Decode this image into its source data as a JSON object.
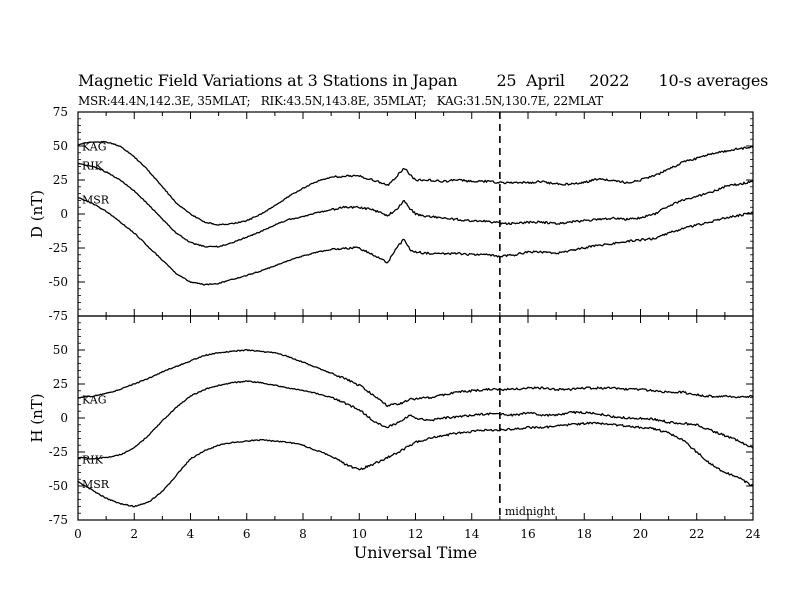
{
  "chart_data": [
    {
      "type": "line",
      "panel": "D",
      "title": "Magnetic Field Variations at 3 Stations in Japan        25  April     2022      10-s averages",
      "subtitle": "MSR:44.4N,142.3E, 35MLAT;   RIK:43.5N,143.8E, 35MLAT;   KAG:31.5N,130.7E, 22MLAT",
      "ylabel": "D (nT)",
      "xlabel": "",
      "xlim": [
        0,
        24
      ],
      "ylim": [
        -75,
        75
      ],
      "yticks": [
        -75,
        -50,
        -25,
        0,
        25,
        50,
        75
      ],
      "x": [
        0,
        0.5,
        1,
        1.5,
        2,
        2.5,
        3,
        3.5,
        4,
        4.5,
        5,
        5.5,
        6,
        6.5,
        7,
        7.5,
        8,
        8.5,
        9,
        9.5,
        10,
        10.5,
        11,
        11.3,
        11.6,
        11.8,
        12,
        12.5,
        13,
        13.5,
        14,
        14.5,
        15,
        15.5,
        16,
        16.5,
        17,
        17.5,
        18,
        18.5,
        19,
        19.5,
        20,
        20.5,
        21,
        21.5,
        22,
        22.5,
        23,
        23.5,
        24
      ],
      "series": [
        {
          "name": "KAG",
          "values": [
            51,
            53,
            53,
            50,
            42,
            32,
            20,
            8,
            0,
            -6,
            -8,
            -7,
            -5,
            0,
            6,
            13,
            19,
            24,
            27,
            28,
            28,
            25,
            21,
            27,
            34,
            29,
            25,
            25,
            24,
            25,
            24,
            24,
            23,
            23,
            23,
            24,
            22,
            22,
            23,
            26,
            25,
            23,
            25,
            28,
            33,
            38,
            41,
            44,
            46,
            48,
            49
          ]
        },
        {
          "name": "RIK",
          "values": [
            37,
            35,
            31,
            25,
            17,
            7,
            -4,
            -14,
            -21,
            -24,
            -24,
            -21,
            -17,
            -13,
            -8,
            -4,
            -2,
            1,
            3,
            5,
            5,
            3,
            -1,
            3,
            10,
            4,
            0,
            -2,
            -3,
            -4,
            -5,
            -5,
            -7,
            -7,
            -6,
            -6,
            -7,
            -6,
            -5,
            -4,
            -3,
            -4,
            -3,
            0,
            6,
            10,
            13,
            16,
            20,
            22,
            24
          ]
        },
        {
          "name": "MSR",
          "values": [
            12,
            8,
            2,
            -6,
            -14,
            -24,
            -34,
            -44,
            -50,
            -52,
            -51,
            -48,
            -45,
            -42,
            -38,
            -34,
            -31,
            -28,
            -26,
            -25,
            -25,
            -30,
            -36,
            -26,
            -18,
            -26,
            -28,
            -29,
            -29,
            -29,
            -30,
            -30,
            -31,
            -30,
            -28,
            -28,
            -29,
            -27,
            -25,
            -23,
            -22,
            -20,
            -19,
            -18,
            -14,
            -11,
            -8,
            -6,
            -3,
            -1,
            1
          ]
        }
      ]
    },
    {
      "type": "line",
      "panel": "H",
      "title": "",
      "ylabel": "H (nT)",
      "xlabel": "Universal Time",
      "xlim": [
        0,
        24
      ],
      "ylim": [
        -75,
        75
      ],
      "xticks": [
        0,
        2,
        4,
        6,
        8,
        10,
        12,
        14,
        16,
        18,
        20,
        22,
        24
      ],
      "yticks": [
        -75,
        -50,
        -25,
        0,
        25,
        50
      ],
      "x": [
        0,
        0.5,
        1,
        1.5,
        2,
        2.5,
        3,
        3.5,
        4,
        4.5,
        5,
        5.5,
        6,
        6.5,
        7,
        7.5,
        8,
        8.5,
        9,
        9.5,
        10,
        10.5,
        11,
        11.5,
        11.8,
        12,
        12.5,
        13,
        13.5,
        14,
        14.5,
        15,
        15.5,
        16,
        16.5,
        17,
        17.5,
        18,
        18.5,
        19,
        19.5,
        20,
        20.5,
        21,
        21.5,
        22,
        22.5,
        23,
        23.5,
        24
      ],
      "series": [
        {
          "name": "KAG",
          "values": [
            15,
            16,
            18,
            21,
            25,
            29,
            34,
            38,
            42,
            46,
            48,
            49,
            50,
            49,
            48,
            45,
            41,
            37,
            33,
            29,
            24,
            17,
            9,
            11,
            14,
            14,
            15,
            17,
            19,
            20,
            21,
            21,
            21,
            22,
            22,
            21,
            21,
            22,
            22,
            22,
            21,
            21,
            20,
            19,
            19,
            17,
            16,
            16,
            15,
            16
          ]
        },
        {
          "name": "RIK",
          "values": [
            -29,
            -30,
            -29,
            -27,
            -22,
            -13,
            -2,
            8,
            16,
            21,
            24,
            26,
            27,
            26,
            24,
            22,
            20,
            18,
            15,
            11,
            6,
            -2,
            -7,
            -2,
            2,
            0,
            -2,
            0,
            1,
            2,
            3,
            3,
            2,
            4,
            2,
            2,
            4,
            4,
            3,
            1,
            0,
            0,
            -1,
            -3,
            -4,
            -5,
            -9,
            -13,
            -17,
            -22
          ]
        },
        {
          "name": "MSR",
          "values": [
            -47,
            -53,
            -59,
            -63,
            -65,
            -62,
            -54,
            -42,
            -30,
            -24,
            -20,
            -18,
            -17,
            -16,
            -17,
            -18,
            -20,
            -24,
            -28,
            -34,
            -38,
            -34,
            -29,
            -24,
            -20,
            -18,
            -15,
            -13,
            -11,
            -10,
            -9,
            -9,
            -8,
            -7,
            -7,
            -6,
            -5,
            -4,
            -4,
            -5,
            -6,
            -7,
            -8,
            -11,
            -16,
            -25,
            -34,
            -40,
            -44,
            -50
          ]
        }
      ]
    }
  ],
  "annotations": {
    "midnight_ut": 15,
    "midnight_label": "midnight"
  },
  "style": {
    "line_color": "#000000",
    "background": "#ffffff"
  }
}
